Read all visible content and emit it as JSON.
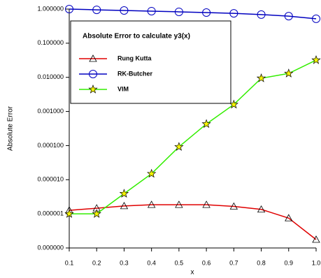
{
  "chart_data": {
    "type": "line",
    "title": "Absolute Error to calculate y3(x)",
    "xlabel": "x",
    "ylabel": "Absolute Error",
    "x": [
      0.1,
      0.2,
      0.3,
      0.4,
      0.5,
      0.6,
      0.7,
      0.8,
      0.9,
      1.0
    ],
    "series": [
      {
        "name": "Rung Kutta",
        "color": "#e00000",
        "marker": "triangle",
        "values": [
          1.27e-06,
          1.46e-06,
          1.7e-06,
          1.85e-06,
          1.85e-06,
          1.85e-06,
          1.65e-06,
          1.35e-06,
          7.5e-07,
          1.76e-07
        ]
      },
      {
        "name": "RK-Butcher",
        "color": "#0000c0",
        "marker": "circle",
        "values": [
          1.0,
          0.95,
          0.91,
          0.87,
          0.83,
          0.79,
          0.75,
          0.69,
          0.62,
          0.52
        ]
      },
      {
        "name": "VIM",
        "color": "#33ee00",
        "marker": "star",
        "values": [
          1e-06,
          1e-06,
          3.9e-06,
          1.5e-05,
          9.2e-05,
          0.00043,
          0.0016,
          0.0094,
          0.013,
          0.032
        ]
      }
    ],
    "xlim": [
      0.1,
      1.0
    ],
    "xticks": [
      0.1,
      0.2,
      0.3,
      0.4,
      0.5,
      0.6,
      0.7,
      0.8,
      0.9,
      {
        "value": 1.0,
        "label": "1.0"
      }
    ],
    "ylim": [
      1e-07,
      1
    ],
    "ylog": true,
    "yticks": [
      {
        "value": 1e-07,
        "label": "0.000000"
      },
      {
        "value": 1e-06,
        "label": "0.000001"
      },
      {
        "value": 1e-05,
        "label": "0.000010"
      },
      {
        "value": 0.0001,
        "label": "0.000100"
      },
      {
        "value": 0.001,
        "label": "0.001000"
      },
      {
        "value": 0.01,
        "label": "0.010000"
      },
      {
        "value": 0.1,
        "label": "0.100000"
      },
      {
        "value": 1,
        "label": "1.000000"
      }
    ],
    "grid": false
  }
}
